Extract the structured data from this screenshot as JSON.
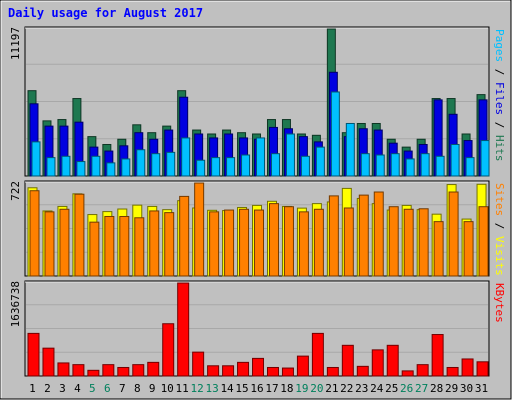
{
  "chart_data": {
    "type": "bar",
    "title": "Daily usage for August 2017",
    "x": [
      "1",
      "2",
      "3",
      "4",
      "5",
      "6",
      "7",
      "8",
      "9",
      "10",
      "11",
      "12",
      "13",
      "14",
      "15",
      "16",
      "17",
      "18",
      "19",
      "20",
      "21",
      "22",
      "23",
      "24",
      "25",
      "26",
      "27",
      "28",
      "29",
      "30",
      "31"
    ],
    "weekend_days": [
      "5",
      "6",
      "12",
      "13",
      "19",
      "20",
      "26",
      "27"
    ],
    "panels": [
      {
        "id": "hits_files_pages",
        "ymax_label": "11197",
        "ylim": [
          0,
          11197
        ],
        "series": [
          {
            "name": "Hits",
            "color": "#1e7850",
            "values": [
              6500,
              4200,
              4300,
              5900,
              3000,
              2400,
              2800,
              3900,
              3300,
              3800,
              6500,
              3500,
              3200,
              3500,
              3300,
              3200,
              4300,
              4300,
              3200,
              3100,
              11197,
              3300,
              4000,
              4000,
              2800,
              2200,
              2800,
              5900,
              5900,
              3200,
              6200
            ]
          },
          {
            "name": "Files",
            "color": "#0000e0",
            "values": [
              5500,
              3800,
              3800,
              4100,
              2200,
              1900,
              2300,
              3300,
              2800,
              3500,
              6000,
              3200,
              2900,
              3200,
              2900,
              2800,
              3700,
              3600,
              3000,
              2600,
              7900,
              3000,
              3600,
              3500,
              2500,
              1900,
              2400,
              5800,
              4700,
              2700,
              5800
            ]
          },
          {
            "name": "Pages",
            "color": "#00c0ff",
            "values": [
              2600,
              1400,
              1500,
              1100,
              1500,
              1000,
              1300,
              2000,
              1700,
              1800,
              2900,
              1200,
              1400,
              1400,
              1600,
              2900,
              1700,
              3200,
              1500,
              2200,
              6400,
              4000,
              1700,
              1600,
              1700,
              1300,
              1700,
              1500,
              2400,
              1400,
              2700
            ]
          }
        ]
      },
      {
        "id": "visits_sites",
        "ymax_label": "722",
        "ylim": [
          0,
          722
        ],
        "series": [
          {
            "name": "Visits",
            "color": "#ffff00",
            "values": [
              685,
              505,
              540,
              638,
              477,
              500,
              520,
              550,
              540,
              515,
              585,
              528,
              510,
              508,
              532,
              548,
              580,
              540,
              527,
              562,
              575,
              680,
              602,
              562,
              512,
              548,
              515,
              480,
              710,
              442,
              712
            ]
          },
          {
            "name": "Sites",
            "color": "#ff8000",
            "values": [
              662,
              498,
              518,
              635,
              418,
              462,
              462,
              452,
              505,
              492,
              618,
              722,
              498,
              512,
              518,
              512,
              562,
              538,
              498,
              518,
              622,
              528,
              628,
              652,
              538,
              518,
              522,
              422,
              652,
              422,
              538
            ]
          }
        ]
      },
      {
        "id": "kbytes",
        "ymax_label": "1636738",
        "ylim": [
          0,
          1636738
        ],
        "series": [
          {
            "name": "KBytes",
            "color": "#ff0000",
            "values": [
              750000,
              490000,
              230000,
              200000,
              100000,
              200000,
              150000,
              200000,
              240000,
              920000,
              1636738,
              420000,
              180000,
              180000,
              240000,
              310000,
              150000,
              140000,
              350000,
              750000,
              150000,
              540000,
              170000,
              460000,
              540000,
              90000,
              200000,
              730000,
              150000,
              300000,
              250000
            ]
          }
        ]
      }
    ],
    "right_labels": [
      [
        {
          "text": "Pages",
          "color": "#00c0ff"
        },
        {
          "text": " / ",
          "color": "#000000"
        },
        {
          "text": "Files",
          "color": "#0000e0"
        },
        {
          "text": " / ",
          "color": "#000000"
        },
        {
          "text": "Hits",
          "color": "#1e7850"
        }
      ],
      [
        {
          "text": "Sites",
          "color": "#ff8000"
        },
        {
          "text": " / ",
          "color": "#000000"
        },
        {
          "text": "Visits",
          "color": "#ffff00"
        }
      ],
      [
        {
          "text": "KBytes",
          "color": "#ff0000"
        }
      ]
    ],
    "colors": {
      "title": "#0000ff",
      "plot_bg": "#c0c0c0",
      "frame_bg": "#c0c0c0",
      "weekday_label": "#000000",
      "weekend_label": "#00805c"
    }
  }
}
